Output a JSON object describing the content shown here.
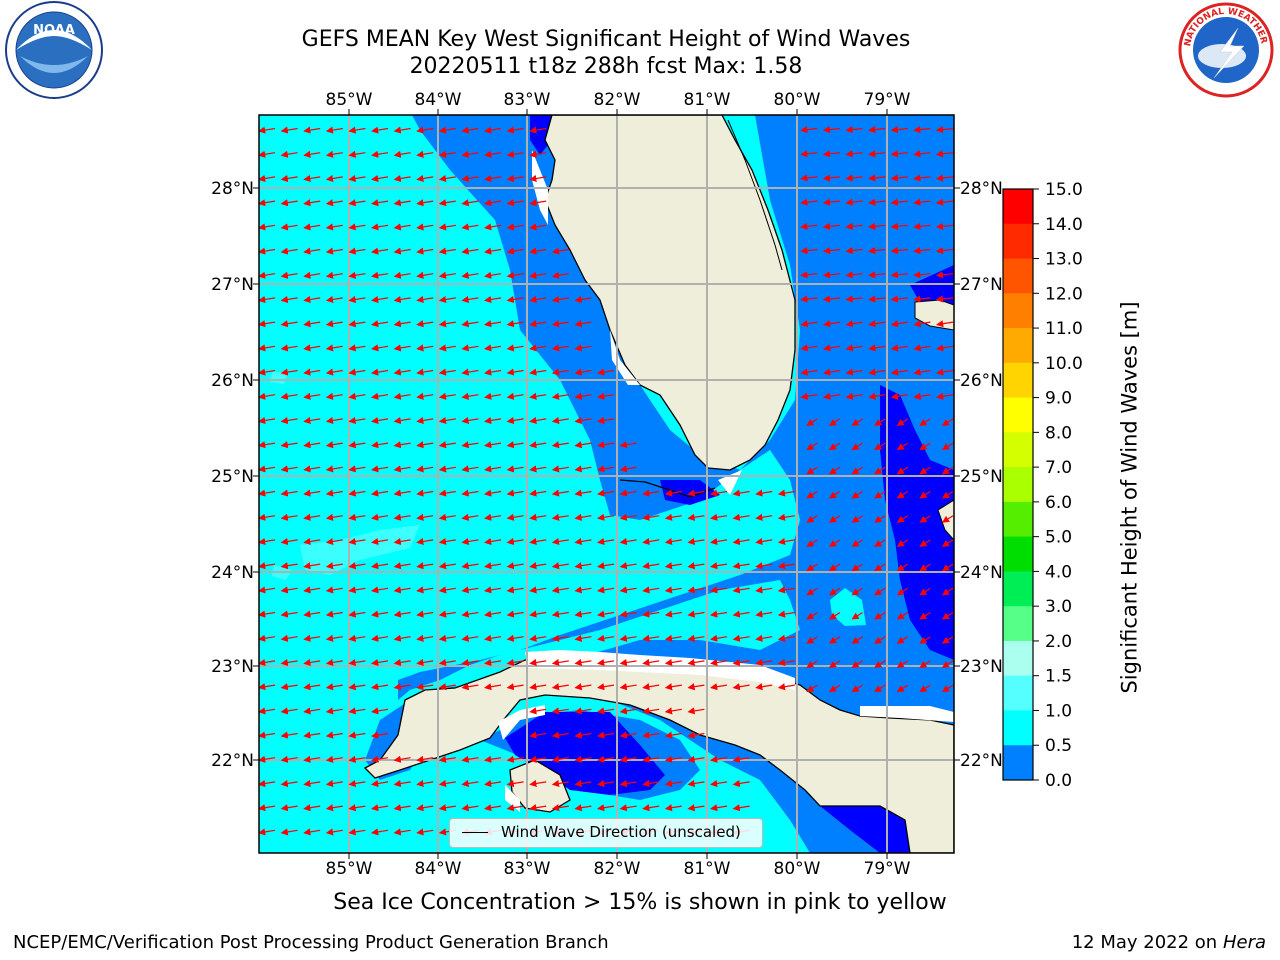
{
  "title": {
    "line1": "GEFS MEAN Key West Significant Height of Wind Waves",
    "line2": "20220511 t18z 288h fcst   Max: 1.58"
  },
  "map": {
    "lon_labels": [
      "85°W",
      "84°W",
      "83°W",
      "82°W",
      "81°W",
      "80°W",
      "79°W"
    ],
    "lat_labels": [
      "28°N",
      "27°N",
      "26°N",
      "25°N",
      "24°N",
      "23°N",
      "22°N"
    ],
    "colors": {
      "ocean_cyan": "#00ffff",
      "ocean_mid": "#0080ff",
      "ocean_deep": "#0000ff",
      "land": "#efeedb",
      "arrow": "#ff0000",
      "grid": "#b0b0b0"
    }
  },
  "legend": {
    "label": "Wind Wave Direction (unscaled)"
  },
  "colorbar": {
    "title": "Significant Height of Wind Waves [m]",
    "tick_labels": [
      "15.0",
      "14.0",
      "13.0",
      "12.0",
      "11.0",
      "10.0",
      "9.0",
      "8.0",
      "7.0",
      "6.0",
      "5.0",
      "4.0",
      "3.0",
      "2.0",
      "1.5",
      "1.0",
      "0.5",
      "0.0"
    ],
    "colors": [
      "#ff0000",
      "#ff2a00",
      "#ff5500",
      "#ff8000",
      "#ffaa00",
      "#ffd400",
      "#ffff00",
      "#d4ff00",
      "#aaff00",
      "#55ee00",
      "#00dd00",
      "#00ee55",
      "#55ff88",
      "#aaffee",
      "#55ffff",
      "#00ffff",
      "#0080ff",
      "#0000ff"
    ]
  },
  "logos": {
    "left": {
      "name": "noaa-logo",
      "text": "NOAA"
    },
    "right": {
      "name": "nws-logo",
      "text": "NATIONAL WEATHER SERVICE"
    }
  },
  "caption": "Sea Ice Concentration > 15% is shown in pink to yellow",
  "footer": {
    "left": "NCEP/EMC/Verification Post Processing Product Generation Branch",
    "right_prefix": "12 May 2022 on",
    "right_machine": "Hera"
  }
}
